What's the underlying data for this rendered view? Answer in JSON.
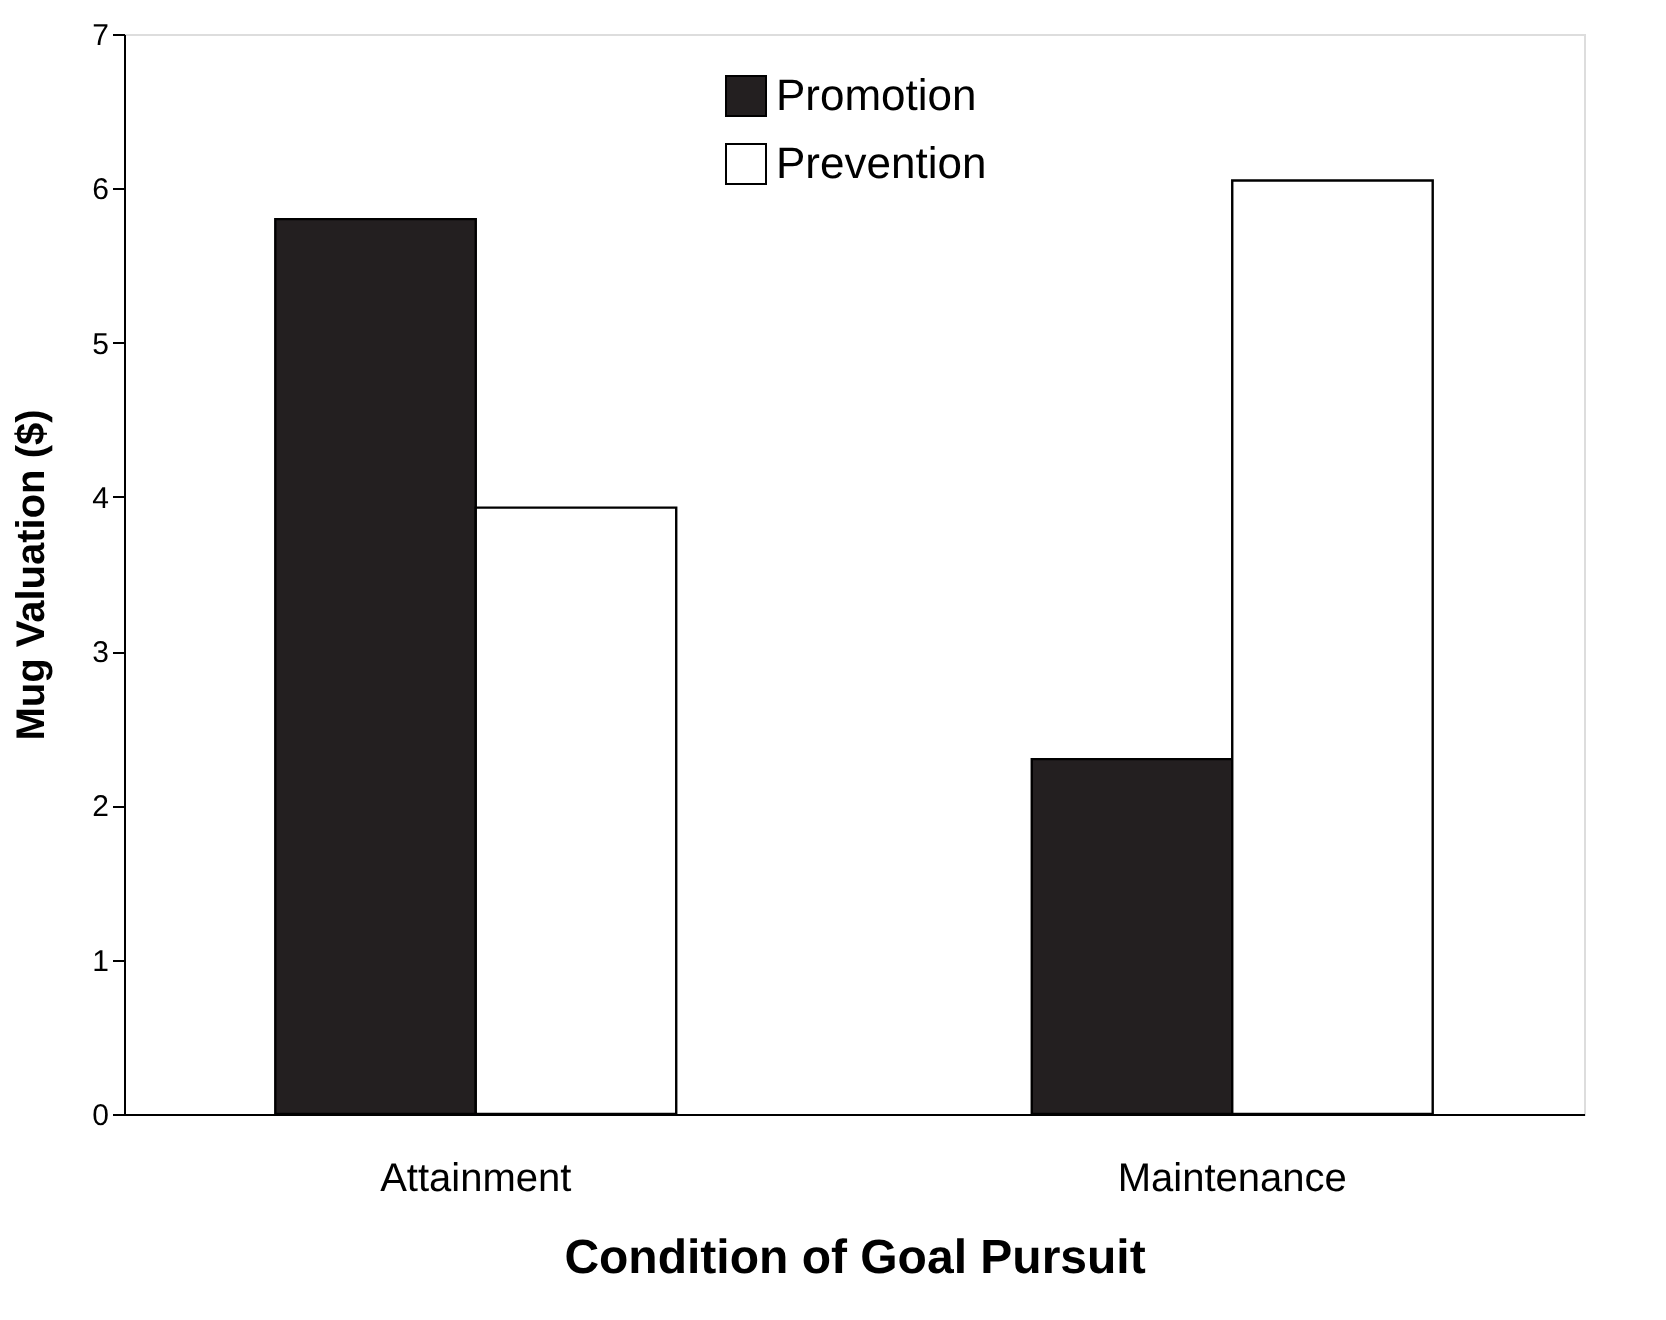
{
  "chart_data": {
    "type": "bar",
    "xlabel": "Condition of Goal Pursuit",
    "ylabel": "Mug Valuation ($)",
    "categories": [
      "Attainment",
      "Maintenance"
    ],
    "series": [
      {
        "name": "Promotion",
        "color": "#231f20",
        "values": [
          5.8,
          2.3
        ]
      },
      {
        "name": "Prevention",
        "color": "#ffffff",
        "values": [
          3.93,
          6.05
        ]
      }
    ],
    "ylim": [
      0,
      7
    ],
    "yticks": [
      0,
      1,
      2,
      3,
      4,
      5,
      6,
      7
    ],
    "grid": false,
    "legend": "top"
  }
}
